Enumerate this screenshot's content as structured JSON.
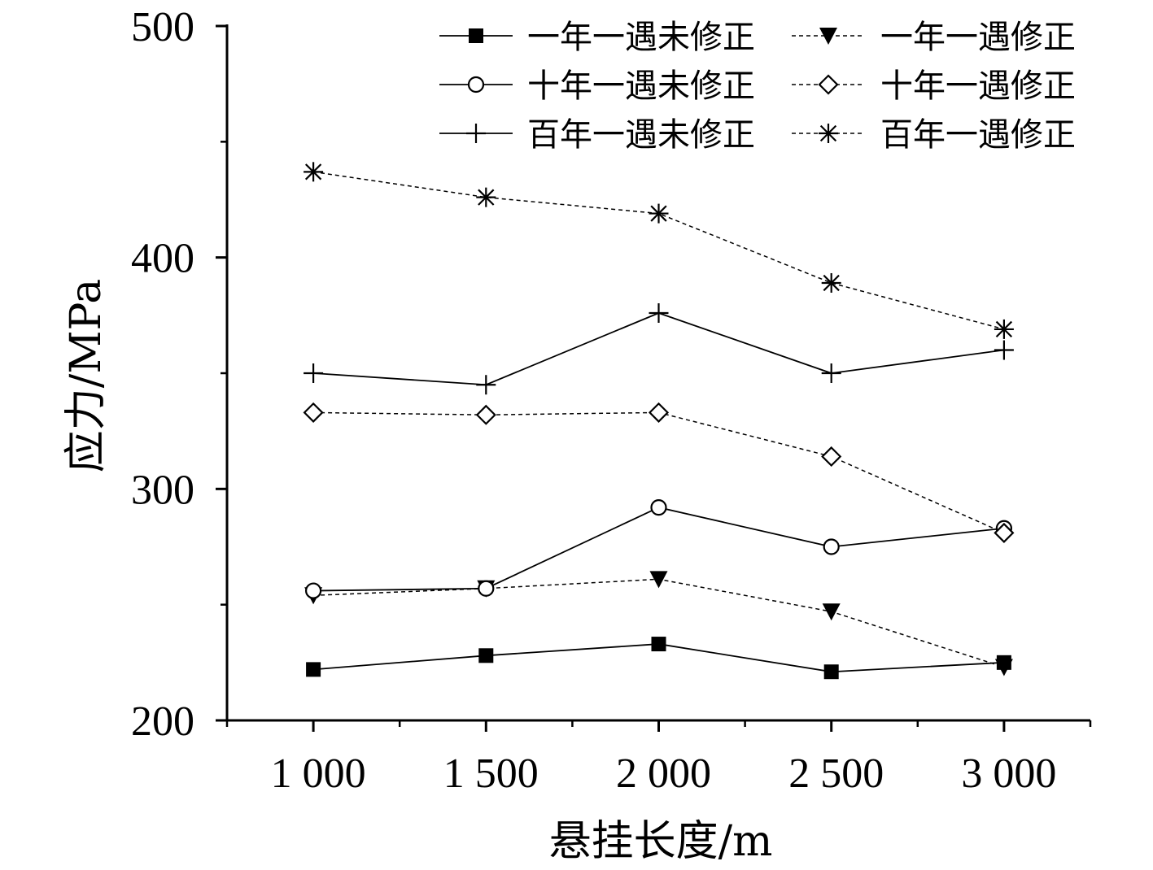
{
  "chart_data": {
    "type": "line",
    "title": "",
    "xlabel": "悬挂长度/m",
    "ylabel": "应力/MPa",
    "x": [
      1000,
      1500,
      2000,
      2500,
      3000
    ],
    "xtick_labels": [
      "1 000",
      "1 500",
      "2 000",
      "2 500",
      "3 000"
    ],
    "xlim": [
      750,
      3250
    ],
    "ylim": [
      200,
      500
    ],
    "yticks": [
      200,
      300,
      400,
      500
    ],
    "ytick_labels": [
      "200",
      "300",
      "400",
      "500"
    ],
    "grid": false,
    "legend_position": "top-right",
    "series": [
      {
        "name": "一年一遇未修正",
        "marker": "square-filled",
        "line": "solid",
        "values": [
          222,
          228,
          233,
          221,
          225
        ]
      },
      {
        "name": "一年一遇修正",
        "marker": "triangle-down-filled",
        "line": "dashed",
        "values": [
          254,
          257,
          261,
          247,
          223
        ]
      },
      {
        "name": "十年一遇未修正",
        "marker": "circle-open",
        "line": "solid",
        "values": [
          256,
          257,
          292,
          275,
          283
        ]
      },
      {
        "name": "十年一遇修正",
        "marker": "diamond-open",
        "line": "dashed",
        "values": [
          333,
          332,
          333,
          314,
          281
        ]
      },
      {
        "name": "百年一遇未修正",
        "marker": "plus",
        "line": "solid",
        "values": [
          350,
          345,
          376,
          350,
          360
        ]
      },
      {
        "name": "百年一遇修正",
        "marker": "asterisk",
        "line": "dashed",
        "values": [
          437,
          426,
          419,
          389,
          369
        ]
      }
    ]
  }
}
